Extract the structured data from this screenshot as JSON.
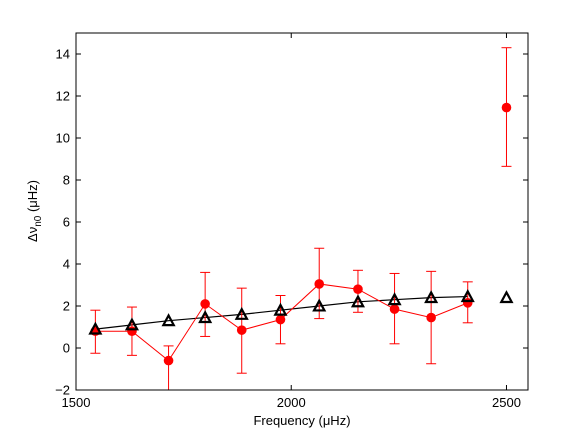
{
  "chart_data": {
    "type": "scatter",
    "title": "",
    "xlabel": "Frequency (μHz)",
    "ylabel_main": "Δν",
    "ylabel_sub": "n0",
    "ylabel_unit": " (μHz)",
    "xlim": [
      1500,
      2550
    ],
    "ylim": [
      -2,
      15
    ],
    "xticks": [
      1500,
      2000,
      2500
    ],
    "yticks": [
      -2,
      0,
      2,
      4,
      6,
      8,
      10,
      12,
      14
    ],
    "grid": false,
    "legend": "none",
    "series": [
      {
        "marker": "filled-circle",
        "color": "#ff0000",
        "line": "partial",
        "x": [
          1545,
          1630,
          1715,
          1800,
          1885,
          1975,
          2065,
          2155,
          2240,
          2325,
          2410,
          2500
        ],
        "y": [
          0.8,
          0.8,
          -0.6,
          2.1,
          0.85,
          1.35,
          3.05,
          2.8,
          1.85,
          1.45,
          2.15,
          11.45
        ],
        "err_low": [
          1.05,
          1.15,
          1.6,
          1.55,
          2.05,
          1.15,
          1.65,
          1.1,
          1.65,
          2.2,
          0.95,
          2.8
        ],
        "err_high": [
          1.0,
          1.15,
          0.7,
          1.5,
          2.0,
          1.15,
          1.7,
          0.9,
          1.7,
          2.2,
          1.0,
          2.85
        ],
        "line_points": 11
      },
      {
        "marker": "open-triangle",
        "color": "#000000",
        "line": "partial",
        "x": [
          1545,
          1630,
          1715,
          1800,
          1885,
          1975,
          2065,
          2155,
          2240,
          2325,
          2410,
          2500
        ],
        "y": [
          0.9,
          1.1,
          1.3,
          1.45,
          1.6,
          1.8,
          2.0,
          2.2,
          2.3,
          2.4,
          2.45,
          2.4
        ],
        "line_points": 11
      }
    ]
  }
}
